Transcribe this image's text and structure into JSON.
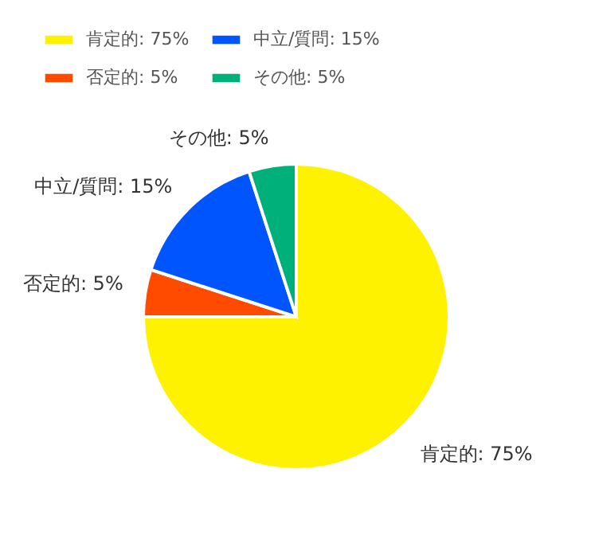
{
  "chart_data": {
    "type": "pie",
    "categories": [
      "肯定的",
      "否定的",
      "中立/質問",
      "その他"
    ],
    "values": [
      75,
      5,
      15,
      5
    ],
    "value_labels": [
      "75%",
      "5%",
      "15%",
      "5%"
    ],
    "colors": [
      "#fff200",
      "#ff4b00",
      "#0055ff",
      "#00b07a"
    ],
    "legend": "top left"
  }
}
